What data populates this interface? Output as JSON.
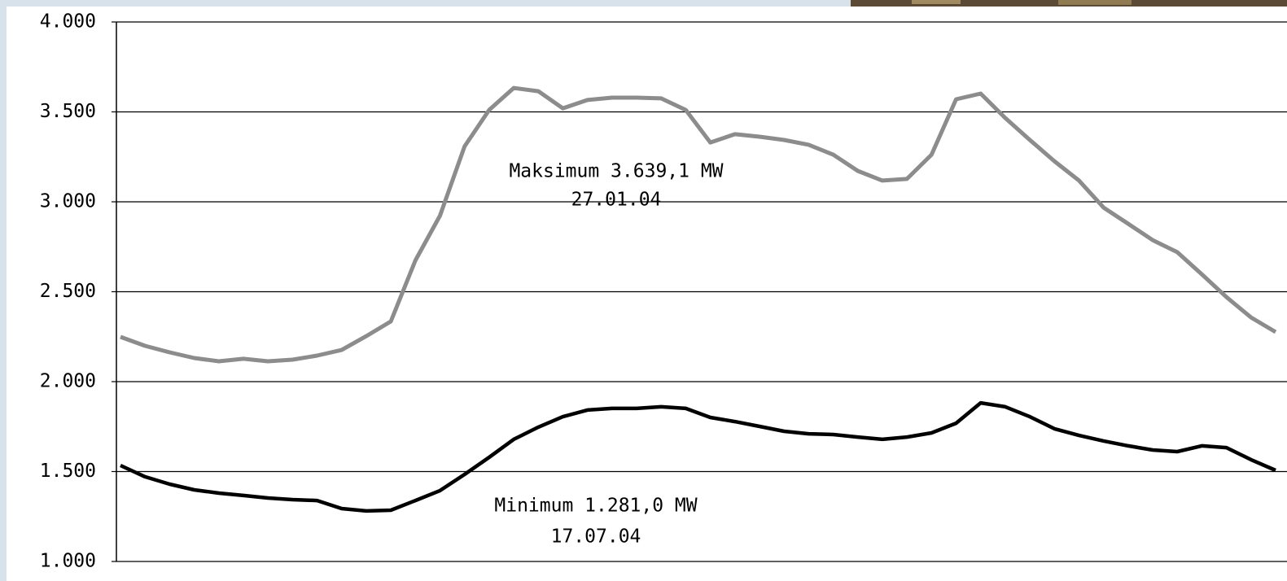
{
  "chart_data": {
    "type": "line",
    "annotations": [
      "Maksimum 3.639,1 MW",
      "27.01.04",
      "Minimum 1.281,0 MW",
      "17.07.04"
    ],
    "series": [
      {
        "name": "Maksimum",
        "color": "#8c8c8c",
        "values": [
          2249,
          2199,
          2163,
          2131,
          2113,
          2127,
          2113,
          2122,
          2145,
          2176,
          2253,
          2335,
          2674,
          2923,
          3308,
          3511,
          3633,
          3615,
          3520,
          3566,
          3579,
          3579,
          3575,
          3511,
          3330,
          3376,
          3362,
          3344,
          3317,
          3262,
          3172,
          3118,
          3127,
          3262,
          3570,
          3602,
          3466,
          3344,
          3226,
          3118,
          2968,
          2878,
          2787,
          2720,
          2597,
          2470,
          2357,
          2276
        ]
      },
      {
        "name": "Minimum",
        "color": "#000000",
        "values": [
          1534,
          1471,
          1430,
          1398,
          1380,
          1367,
          1353,
          1344,
          1339,
          1294,
          1281,
          1285,
          1339,
          1394,
          1484,
          1579,
          1679,
          1747,
          1805,
          1842,
          1851,
          1851,
          1860,
          1851,
          1801,
          1778,
          1751,
          1724,
          1710,
          1706,
          1692,
          1679,
          1692,
          1715,
          1769,
          1882,
          1860,
          1805,
          1738,
          1701,
          1670,
          1643,
          1620,
          1611,
          1643,
          1633,
          1566,
          1507
        ]
      }
    ],
    "ylim": [
      1000,
      4000
    ],
    "yticks": [
      {
        "value": 1000,
        "label": "1.000"
      },
      {
        "value": 1500,
        "label": "1.500"
      },
      {
        "value": 2000,
        "label": "2.000"
      },
      {
        "value": 2500,
        "label": "2.500"
      },
      {
        "value": 3000,
        "label": "3.000"
      },
      {
        "value": 3500,
        "label": "3.500"
      },
      {
        "value": 4000,
        "label": "4.000"
      }
    ],
    "grid": true
  }
}
